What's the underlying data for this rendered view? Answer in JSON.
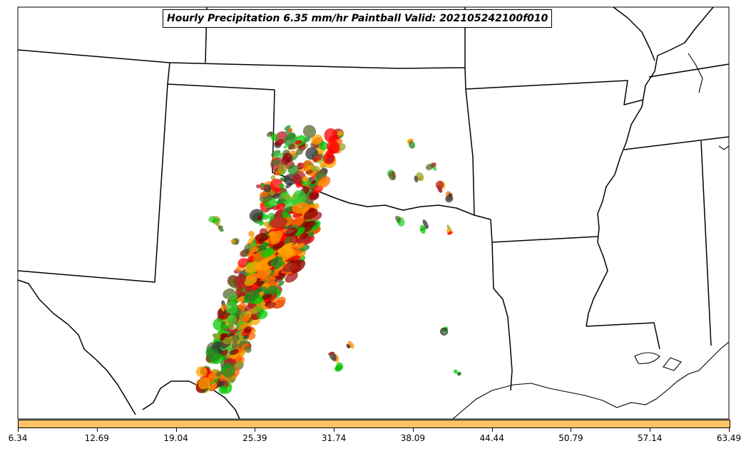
{
  "title": "Hourly Precipitation 6.35 mm/hr Paintball Valid: 202105242100f010",
  "colorbar": {
    "color": "#ffc266",
    "tick_labels": [
      "6.34",
      "12.69",
      "19.04",
      "25.39",
      "31.74",
      "38.09",
      "44.44",
      "50.79",
      "57.14",
      "63.49"
    ]
  },
  "member_colors": [
    "#b22222",
    "#8b0000",
    "#ff0000",
    "#ff8c00",
    "#ffa500",
    "#ff6600",
    "#00cc00",
    "#228b22",
    "#32cd32",
    "#556b2f",
    "#9aa020",
    "#333333"
  ]
}
